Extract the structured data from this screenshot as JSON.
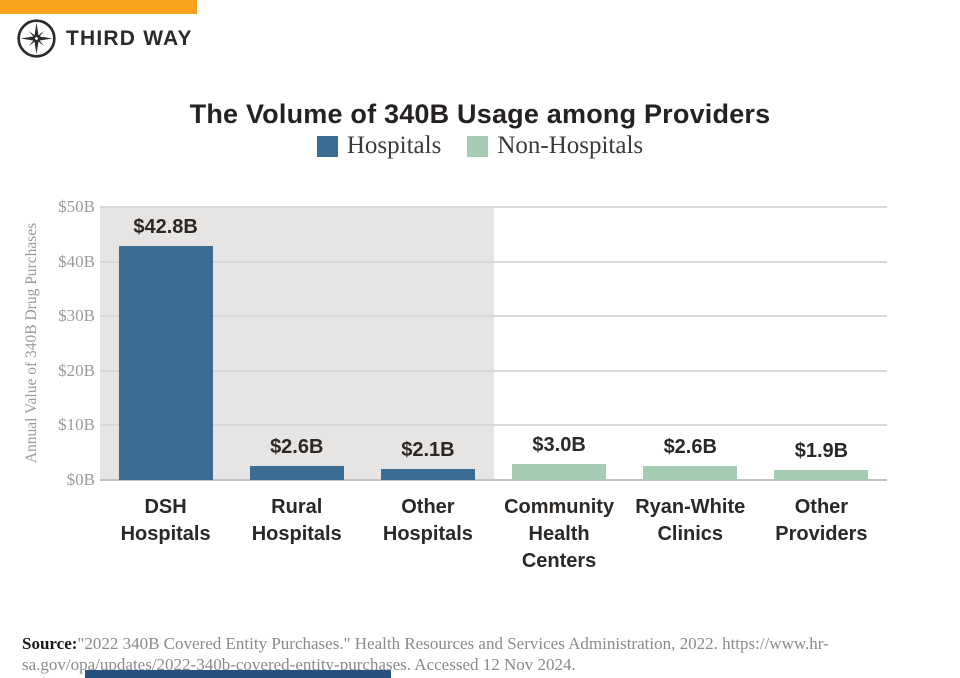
{
  "brand": {
    "name": "THIRD WAY",
    "topbar_color": "#F9A21B",
    "logo": "compass-star-icon"
  },
  "chart_data": {
    "type": "bar",
    "title": "The Volume of 340B Usage among Providers",
    "ylabel": "Annual Value of 340B Drug Purchases",
    "xlabel": "",
    "ylim": [
      0,
      50
    ],
    "ytick_labels": [
      "$0B",
      "$10B",
      "$20B",
      "$30B",
      "$40B",
      "$50B"
    ],
    "grid": true,
    "legend_position": "top",
    "legend": [
      {
        "label": "Hospitals",
        "color": "#3B6C94"
      },
      {
        "label": "Non-Hospitals",
        "color": "#A6CDB3"
      }
    ],
    "categories": [
      "DSH Hospitals",
      "Rural Hospitals",
      "Other Hospitals",
      "Community Health Centers",
      "Ryan-White Clinics",
      "Other Providers"
    ],
    "category_lines": [
      "DSH\nHospitals",
      "Rural\nHospitals",
      "Other\nHospitals",
      "Community\nHealth\nCenters",
      "Ryan-White\nClinics",
      "Other\nProviders"
    ],
    "values": [
      42.8,
      2.6,
      2.1,
      3.0,
      2.6,
      1.9
    ],
    "value_labels": [
      "$42.8B",
      "$2.6B",
      "$2.1B",
      "$3.0B",
      "$2.6B",
      "$1.9B"
    ],
    "groups": [
      "Hospitals",
      "Hospitals",
      "Hospitals",
      "Non-Hospitals",
      "Non-Hospitals",
      "Non-Hospitals"
    ],
    "group_shading": "gray panel behind Hospitals bars",
    "panel_gray": "#E6E5E4"
  },
  "source": {
    "label": "Source:",
    "line1": "\"2022 340B Covered Entity Purchases.\" Health Resources and Services Administration, 2022. https://www.hr-",
    "line2": "sa.gov/opa/updates/2022-340b-covered-entity-purchases. Accessed 12 Nov 2024."
  }
}
